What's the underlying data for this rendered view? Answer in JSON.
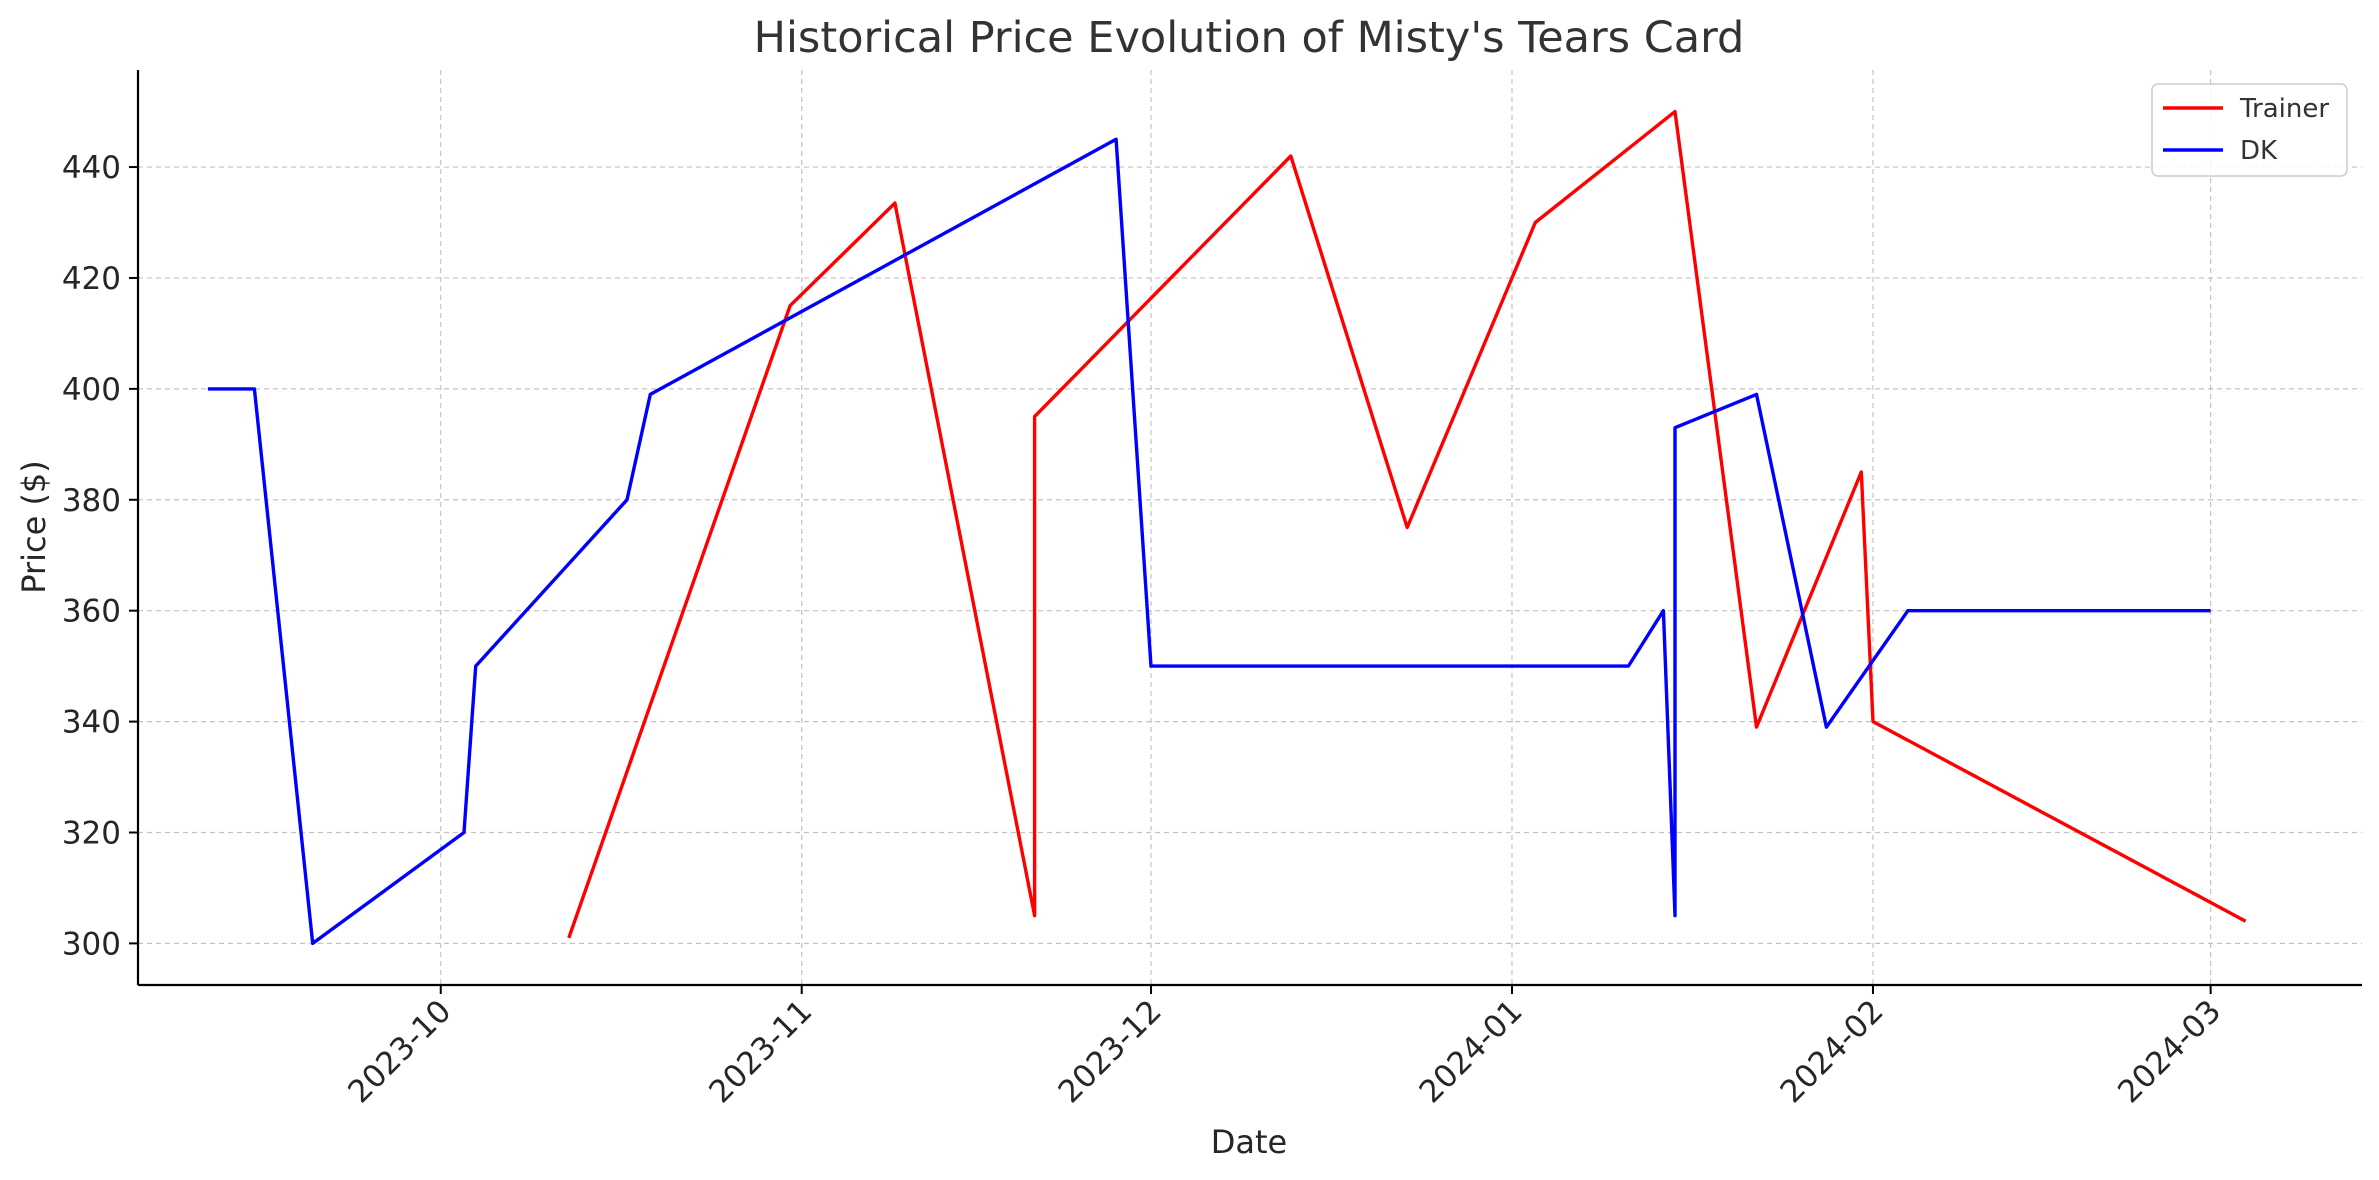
{
  "chart_data": {
    "type": "line",
    "title": "Historical Price Evolution of Misty's Tears Card",
    "xlabel": "Date",
    "ylabel": "Price ($)",
    "grid": true,
    "legend_position": "top-right",
    "xlim": [
      "2023-09-05",
      "2024-03-14"
    ],
    "ylim": [
      292.5,
      457.5
    ],
    "x_ticks": [
      "2023-10-01",
      "2023-11-01",
      "2023-12-01",
      "2024-01-01",
      "2024-02-01",
      "2024-03-01"
    ],
    "x_tick_labels": [
      "2023-10",
      "2023-11",
      "2023-12",
      "2024-01",
      "2024-02",
      "2024-03"
    ],
    "y_ticks": [
      300,
      320,
      340,
      360,
      380,
      400,
      420,
      440
    ],
    "series": [
      {
        "name": "Trainer",
        "color": "#ff0000",
        "points": [
          {
            "x": "2023-10-12",
            "y": 301
          },
          {
            "x": "2023-10-31",
            "y": 415
          },
          {
            "x": "2023-11-09",
            "y": 433.5
          },
          {
            "x": "2023-11-21",
            "y": 305
          },
          {
            "x": "2023-11-21",
            "y": 395
          },
          {
            "x": "2023-12-13",
            "y": 442
          },
          {
            "x": "2023-12-23",
            "y": 375
          },
          {
            "x": "2024-01-03",
            "y": 430
          },
          {
            "x": "2024-01-15",
            "y": 450
          },
          {
            "x": "2024-01-22",
            "y": 339
          },
          {
            "x": "2024-01-31",
            "y": 385
          },
          {
            "x": "2024-02-01",
            "y": 340
          },
          {
            "x": "2024-03-04",
            "y": 304
          }
        ]
      },
      {
        "name": "DK",
        "color": "#0000ff",
        "points": [
          {
            "x": "2023-09-11",
            "y": 400
          },
          {
            "x": "2023-09-15",
            "y": 400
          },
          {
            "x": "2023-09-20",
            "y": 300
          },
          {
            "x": "2023-10-03",
            "y": 320
          },
          {
            "x": "2023-10-04",
            "y": 350
          },
          {
            "x": "2023-10-17",
            "y": 380
          },
          {
            "x": "2023-10-19",
            "y": 399
          },
          {
            "x": "2023-11-28",
            "y": 445
          },
          {
            "x": "2023-12-01",
            "y": 350
          },
          {
            "x": "2024-01-11",
            "y": 350
          },
          {
            "x": "2024-01-14",
            "y": 360
          },
          {
            "x": "2024-01-15",
            "y": 305
          },
          {
            "x": "2024-01-15",
            "y": 393
          },
          {
            "x": "2024-01-22",
            "y": 399
          },
          {
            "x": "2024-01-28",
            "y": 339
          },
          {
            "x": "2024-02-04",
            "y": 360
          },
          {
            "x": "2024-03-01",
            "y": 360
          }
        ]
      }
    ]
  }
}
